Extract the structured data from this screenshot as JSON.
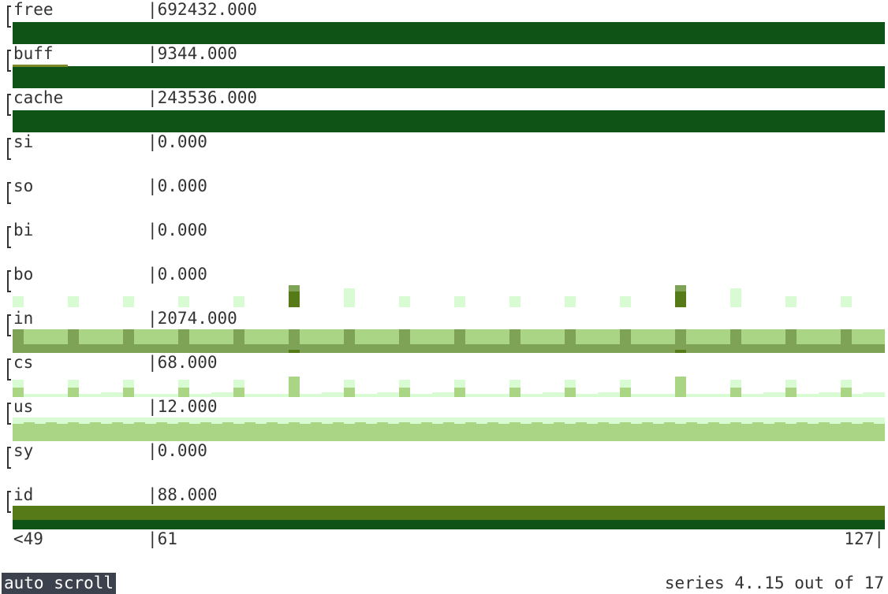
{
  "rows": [
    {
      "name": "free",
      "value": "|692432.000",
      "pattern": "solid-dark"
    },
    {
      "name": "buff",
      "value": "|9344.000",
      "pattern": "solid-dark-buff"
    },
    {
      "name": "cache",
      "value": "|243536.000",
      "pattern": "solid-dark"
    },
    {
      "name": "si",
      "value": "|0.000",
      "pattern": "empty"
    },
    {
      "name": "so",
      "value": "|0.000",
      "pattern": "empty"
    },
    {
      "name": "bi",
      "value": "|0.000",
      "pattern": "empty"
    },
    {
      "name": "bo",
      "value": "|0.000",
      "pattern": "bo"
    },
    {
      "name": "in",
      "value": "|2074.000",
      "pattern": "in"
    },
    {
      "name": "cs",
      "value": "|68.000",
      "pattern": "cs"
    },
    {
      "name": "us",
      "value": "|12.000",
      "pattern": "us"
    },
    {
      "name": "sy",
      "value": "|0.000",
      "pattern": "empty"
    },
    {
      "name": "id",
      "value": "|88.000",
      "pattern": "id"
    }
  ],
  "axis": {
    "left": "<49",
    "mid": "|61",
    "right": "127|"
  },
  "status": {
    "mode": "auto scroll",
    "series_info": "series 4..15 out of 17"
  },
  "colors": {
    "dark_green": "#0f5416",
    "olive_green": "#577a19",
    "mid_green": "#7fa356",
    "light_green": "#a9d585",
    "pale_green": "#d9fbd3"
  }
}
